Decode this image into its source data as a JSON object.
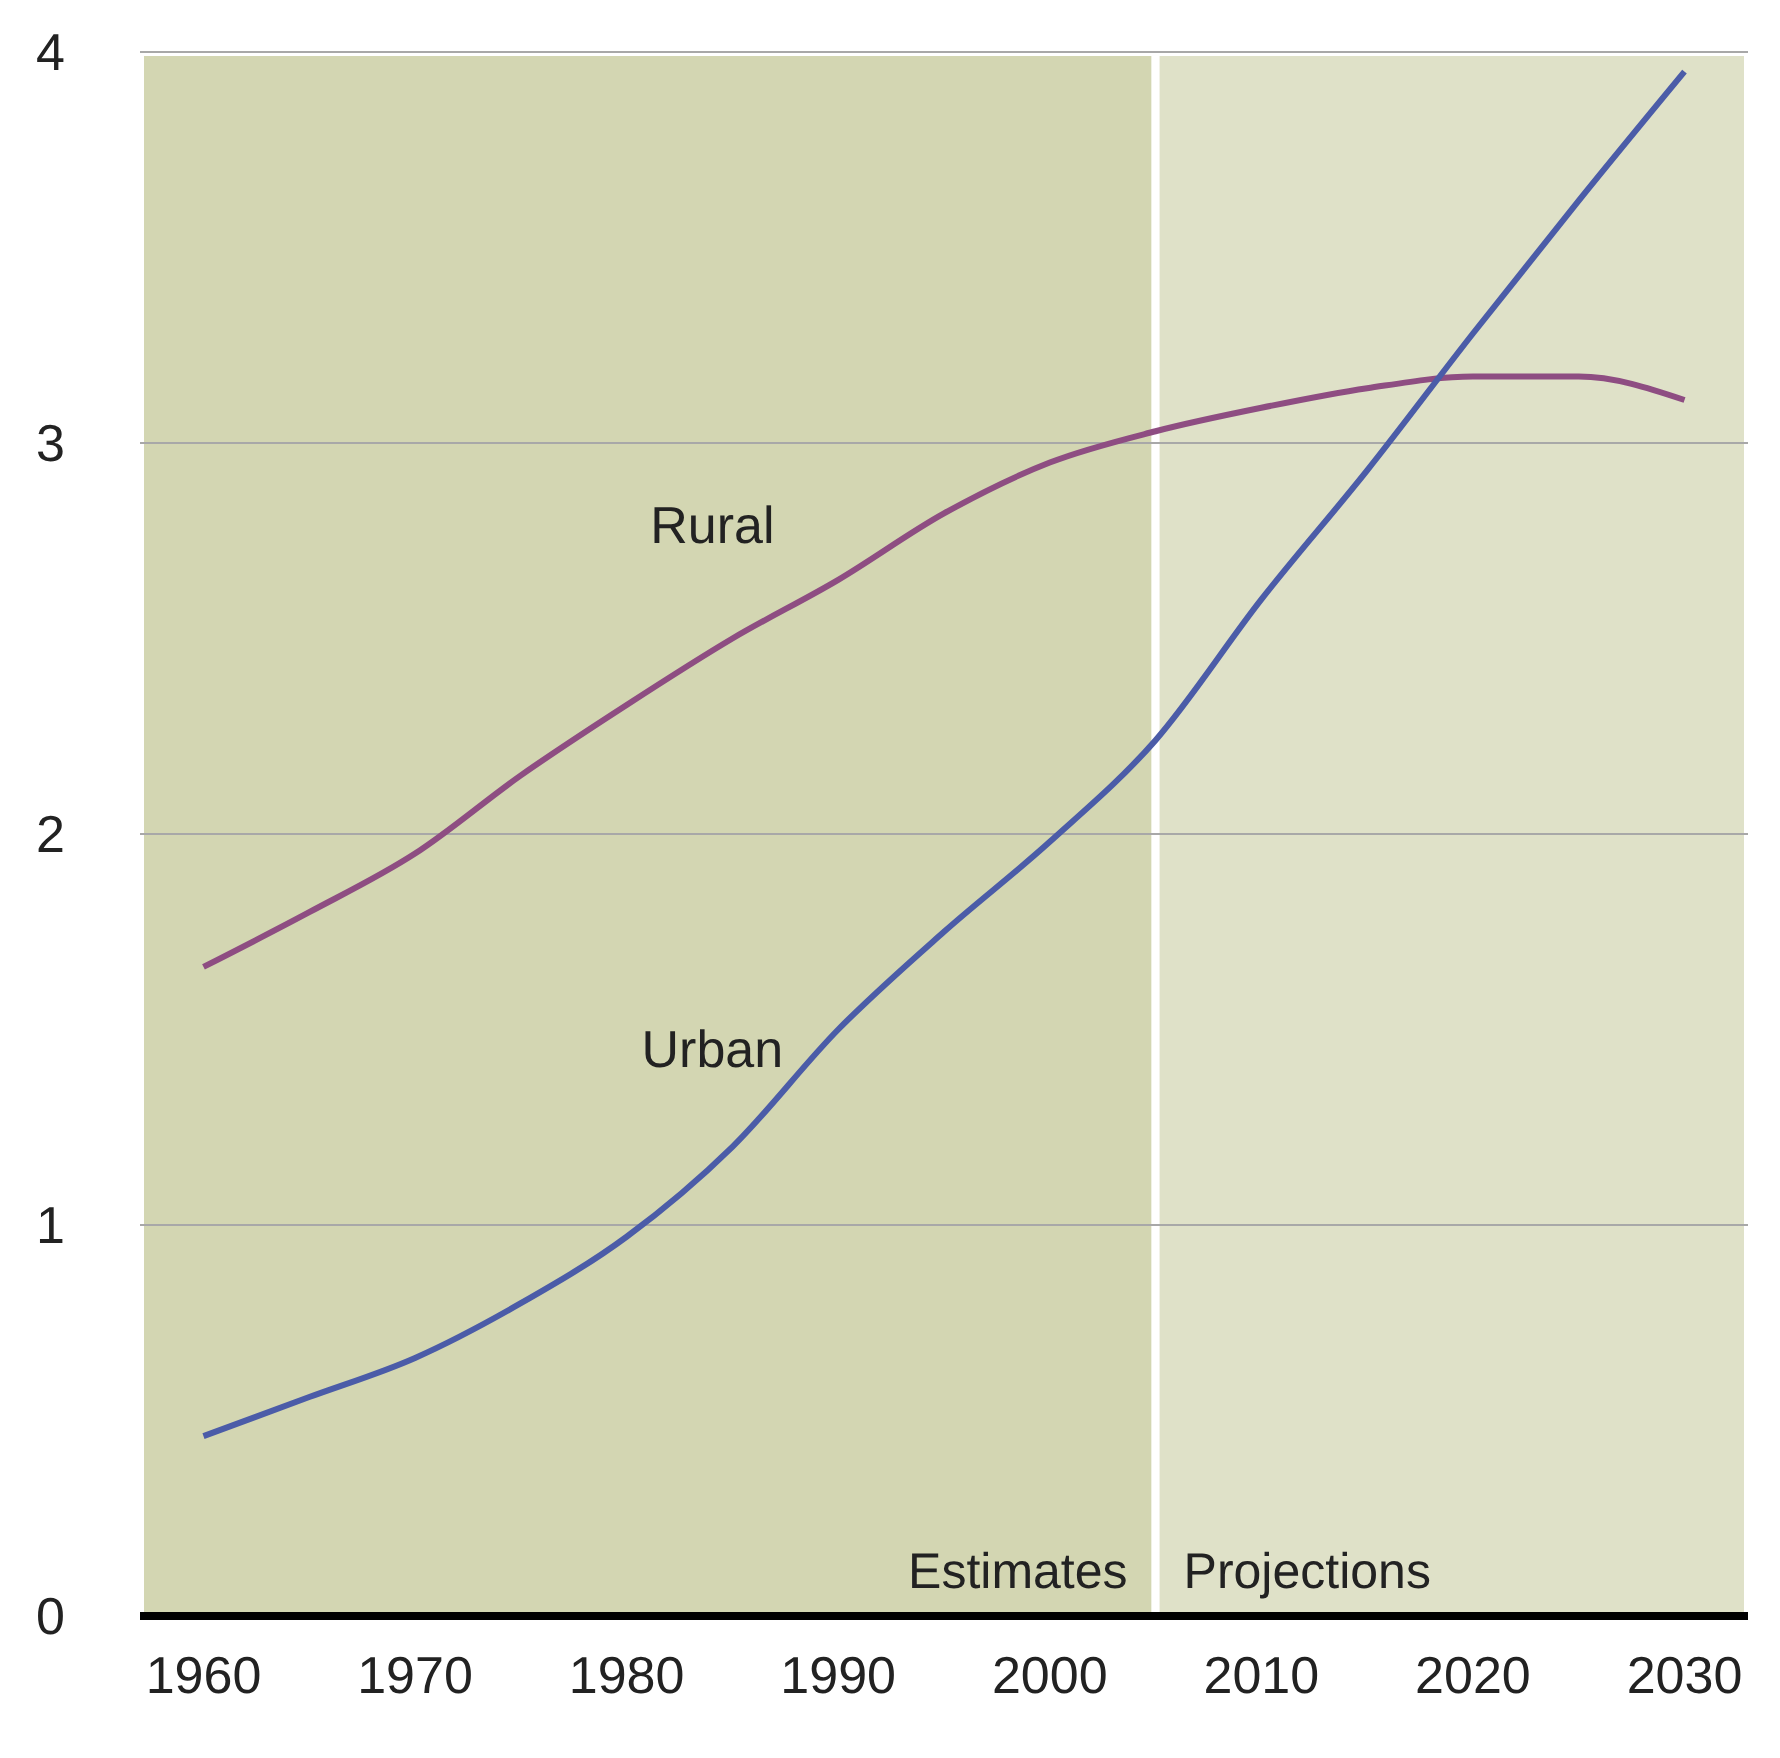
{
  "chart_data": {
    "type": "line",
    "x": [
      1960,
      1965,
      1970,
      1975,
      1980,
      1985,
      1990,
      1995,
      2000,
      2005,
      2010,
      2015,
      2020,
      2025,
      2030
    ],
    "series": [
      {
        "name": "Rural",
        "color": "#8e4d82",
        "values": [
          1.66,
          1.8,
          1.95,
          2.15,
          2.33,
          2.5,
          2.65,
          2.82,
          2.95,
          3.03,
          3.09,
          3.14,
          3.17,
          3.17,
          3.11
        ]
      },
      {
        "name": "Urban",
        "color": "#4b5ca8",
        "values": [
          0.46,
          0.56,
          0.66,
          0.8,
          0.97,
          1.2,
          1.5,
          1.75,
          1.98,
          2.24,
          2.6,
          2.93,
          3.28,
          3.62,
          3.95
        ]
      }
    ],
    "xlim": [
      1957,
      2033
    ],
    "xticks": [
      1960,
      1970,
      1980,
      1990,
      2000,
      2010,
      2020,
      2030
    ],
    "ylim": [
      0,
      4
    ],
    "yticks": [
      0,
      1,
      2,
      3,
      4
    ],
    "grid": "y",
    "marker": "none",
    "line_style": "solid",
    "bands": [
      {
        "axis": "x",
        "from": 1957,
        "to": 2005,
        "label": "Estimates",
        "color": "#d3d6b2"
      },
      {
        "axis": "x",
        "from": 2005,
        "to": 2033,
        "label": "Projections",
        "color": "#dfe1c8"
      }
    ]
  }
}
